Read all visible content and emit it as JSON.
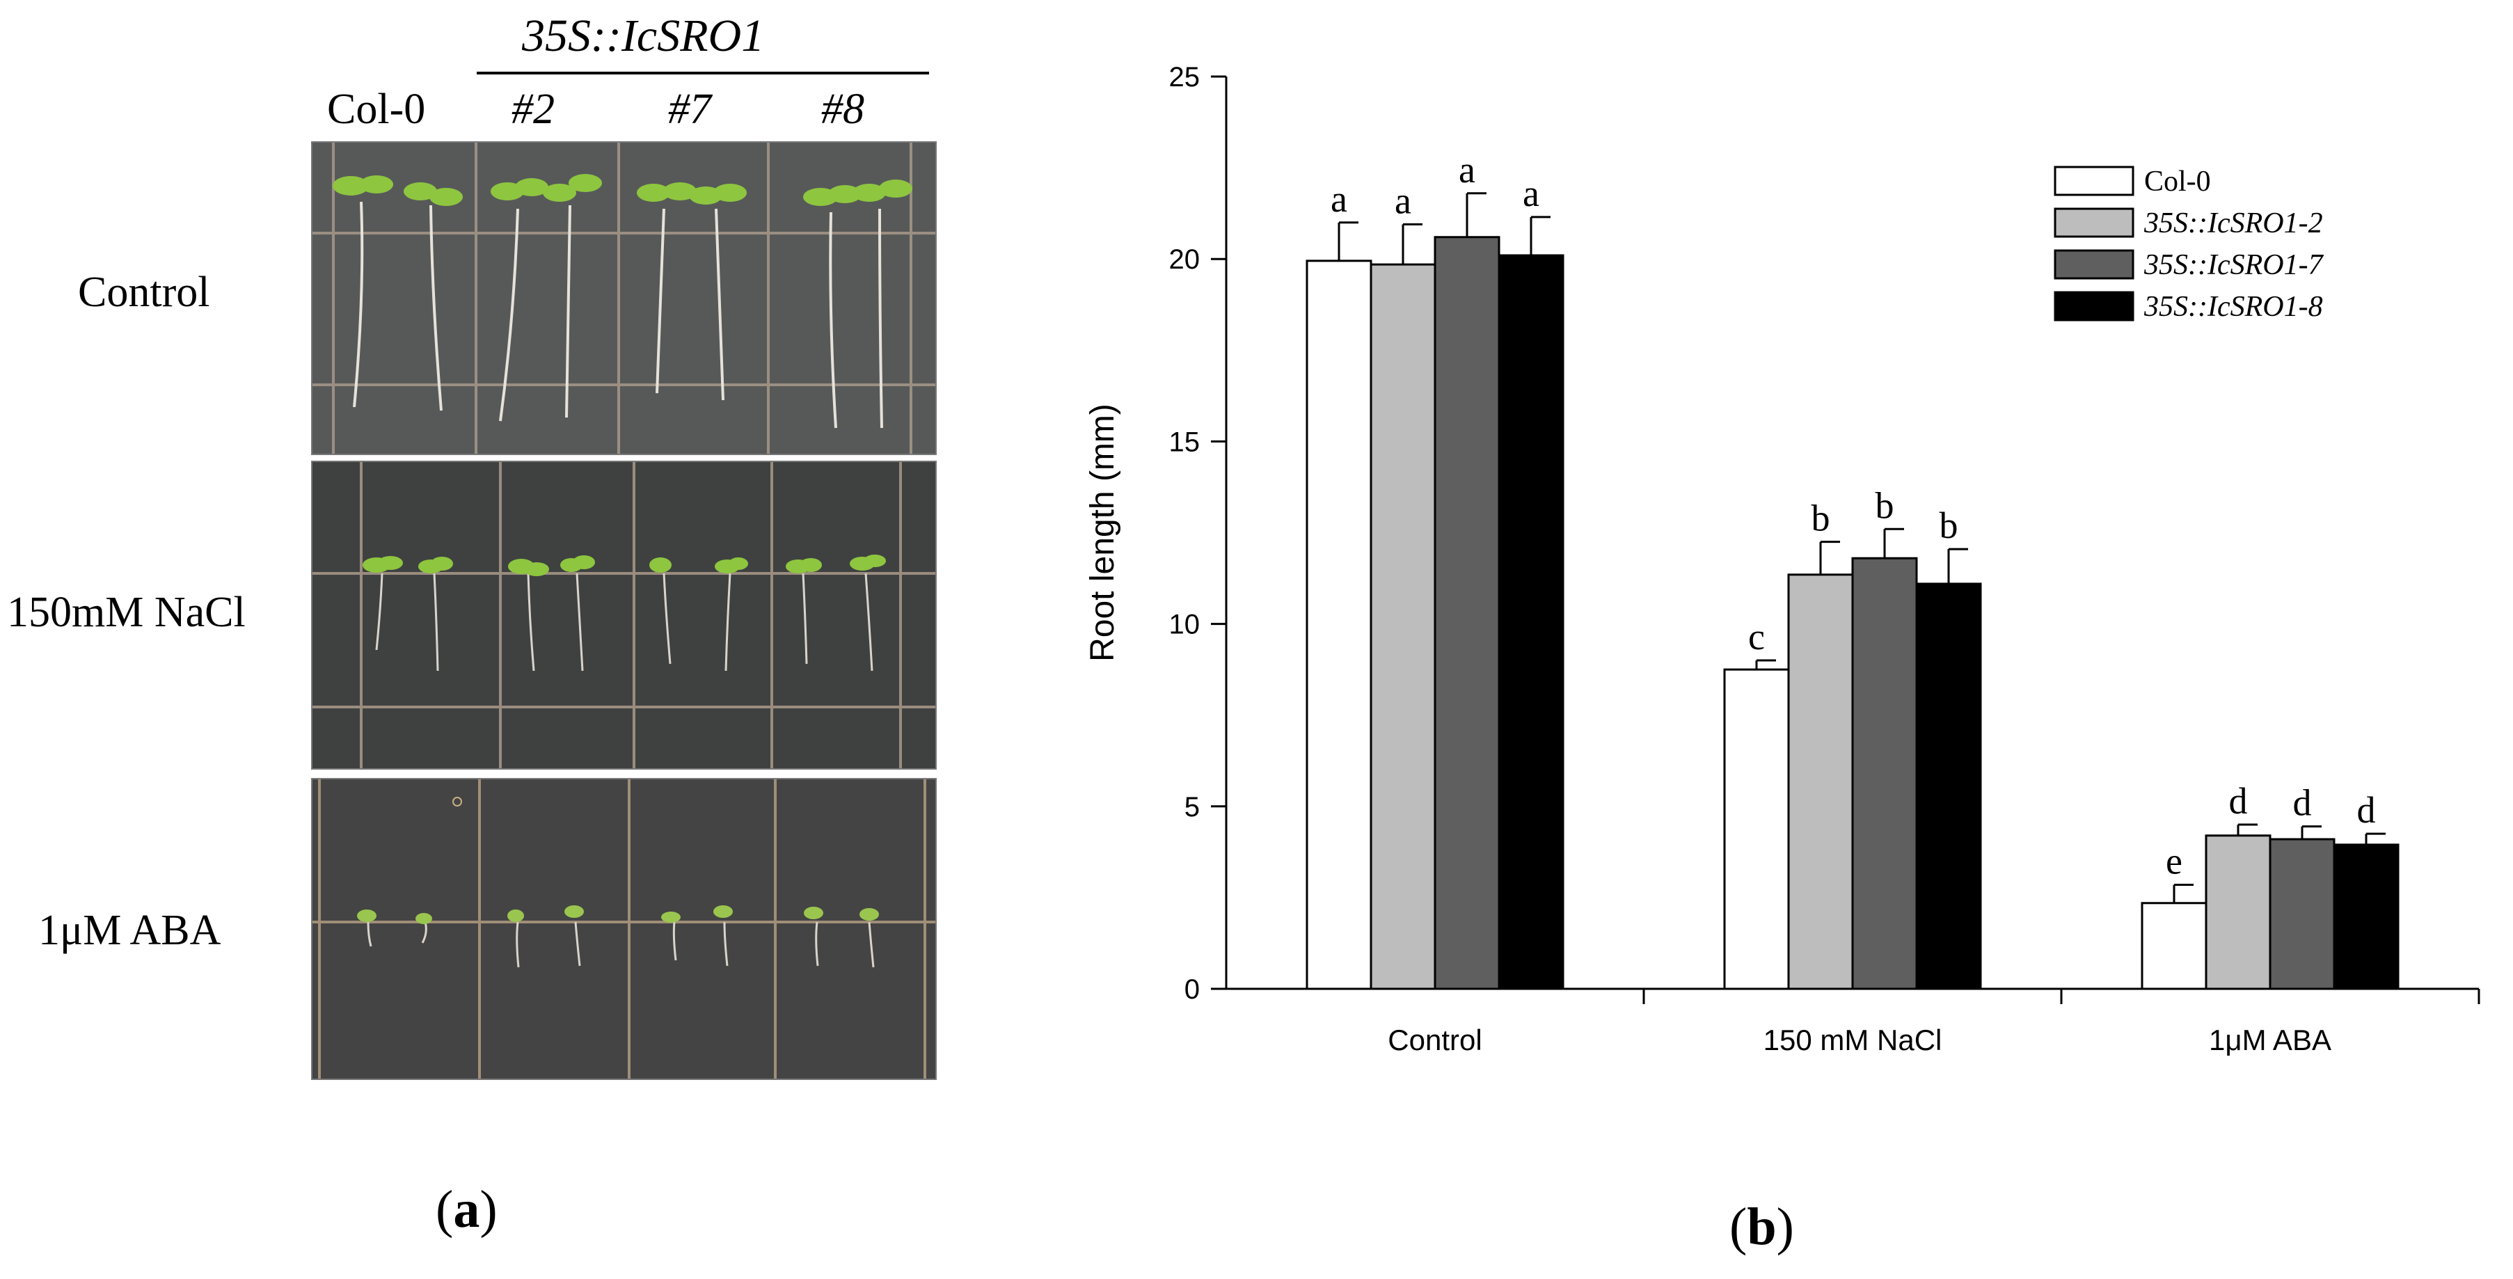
{
  "panel_a": {
    "construct_header": "35S::IcSRO1",
    "columns": [
      "Col-0",
      "#2",
      "#7",
      "#8"
    ],
    "rows": [
      "Control",
      "150mM NaCl",
      "1μM ABA"
    ],
    "caption_letter": "a"
  },
  "panel_b": {
    "caption_letter": "b"
  },
  "chart_data": {
    "type": "bar",
    "categories": [
      "Control",
      "150 mM NaCl",
      "1μM ABA"
    ],
    "ylabel": "Root length (mm)",
    "xlabel": "",
    "ylim": [
      0,
      25
    ],
    "yticks": [
      0,
      5,
      10,
      15,
      20,
      25
    ],
    "legend_position": "top-right",
    "grid": false,
    "series": [
      {
        "name": "Col-0",
        "color": "#ffffff",
        "values": [
          19.95,
          8.75,
          2.35
        ],
        "errors": [
          1.05,
          0.25,
          0.5
        ],
        "letters": [
          "a",
          "c",
          "e"
        ]
      },
      {
        "name": "35S::IcSRO1-2",
        "color": "#bdbdbd",
        "values": [
          19.85,
          11.35,
          4.2
        ],
        "errors": [
          1.1,
          0.9,
          0.3
        ],
        "letters": [
          "a",
          "b",
          "d"
        ]
      },
      {
        "name": "35S::IcSRO1-7",
        "color": "#5f5f5f",
        "values": [
          20.6,
          11.8,
          4.1
        ],
        "errors": [
          1.2,
          0.8,
          0.35
        ],
        "letters": [
          "a",
          "b",
          "d"
        ]
      },
      {
        "name": "35S::IcSRO1-8",
        "color": "#000000",
        "values": [
          20.1,
          11.1,
          3.95
        ],
        "errors": [
          1.05,
          0.95,
          0.3
        ],
        "letters": [
          "a",
          "b",
          "d"
        ]
      }
    ]
  }
}
